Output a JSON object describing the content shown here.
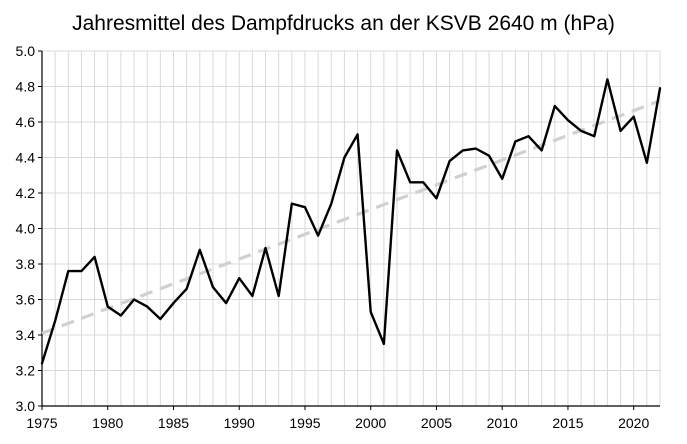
{
  "chart_data": {
    "type": "line",
    "title": "Jahresmittel des Dampfdrucks an der KSVB 2640 m (hPa)",
    "xlabel": "",
    "ylabel": "",
    "xlim": [
      1975,
      2022
    ],
    "ylim": [
      3.0,
      5.0
    ],
    "x_ticks": [
      1975,
      1980,
      1985,
      1990,
      1995,
      2000,
      2005,
      2010,
      2015,
      2020
    ],
    "y_ticks": [
      3.0,
      3.2,
      3.4,
      3.6,
      3.8,
      4.0,
      4.2,
      4.4,
      4.6,
      4.8,
      5.0
    ],
    "x_tick_labels": [
      "1975",
      "1980",
      "1985",
      "1990",
      "1995",
      "2000",
      "2005",
      "2010",
      "2015",
      "2020"
    ],
    "y_tick_labels": [
      "3.0",
      "3.2",
      "3.4",
      "3.6",
      "3.8",
      "4.0",
      "4.2",
      "4.4",
      "4.6",
      "4.8",
      "5.0"
    ],
    "grid": true,
    "legend": "none",
    "colors": {
      "series": "#000000",
      "trend": "#d0d0d0",
      "grid": "#d9d9d9"
    },
    "series": [
      {
        "x": [
          1975,
          1976,
          1977,
          1978,
          1979,
          1980,
          1981,
          1982,
          1983,
          1984,
          1985,
          1986,
          1987,
          1988,
          1989,
          1990,
          1991,
          1992,
          1993,
          1994,
          1995,
          1996,
          1997,
          1998,
          1999,
          2000,
          2001,
          2002,
          2003,
          2004,
          2005,
          2006,
          2007,
          2008,
          2009,
          2010,
          2011,
          2012,
          2013,
          2014,
          2015,
          2016,
          2017,
          2018,
          2019,
          2020,
          2021,
          2022
        ],
        "values": [
          3.24,
          3.48,
          3.76,
          3.76,
          3.84,
          3.56,
          3.51,
          3.6,
          3.56,
          3.49,
          3.58,
          3.66,
          3.88,
          3.67,
          3.58,
          3.72,
          3.62,
          3.89,
          3.62,
          4.14,
          4.12,
          3.96,
          4.14,
          4.4,
          4.53,
          3.53,
          3.35,
          4.44,
          4.26,
          4.26,
          4.17,
          4.38,
          4.44,
          4.45,
          4.41,
          4.28,
          4.49,
          4.52,
          4.44,
          4.69,
          4.61,
          4.55,
          4.52,
          4.84,
          4.55,
          4.63,
          4.37,
          4.79
        ]
      },
      {
        "type": "trend",
        "x": [
          1975,
          2022
        ],
        "values": [
          3.41,
          4.72
        ]
      }
    ]
  }
}
